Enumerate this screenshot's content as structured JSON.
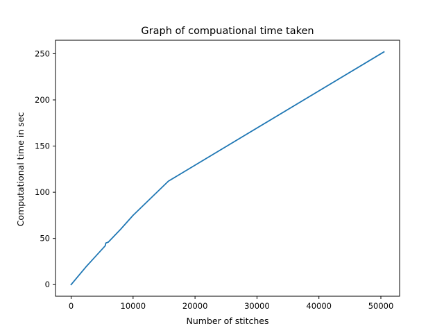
{
  "chart_data": {
    "type": "line",
    "title": "Graph of compuational time taken",
    "xlabel": "Number of stitches",
    "ylabel": "Computational time in sec",
    "xlim": [
      -2525,
      53025
    ],
    "ylim": [
      -12.6,
      264.6
    ],
    "xticks": [
      0,
      10000,
      20000,
      30000,
      40000,
      50000
    ],
    "yticks": [
      0,
      50,
      100,
      150,
      200,
      250
    ],
    "grid": false,
    "series": [
      {
        "color": "#1f77b4",
        "x": [
          0,
          2500,
          5500,
          5600,
          6000,
          8000,
          10000,
          15700,
          50500
        ],
        "y": [
          0,
          20,
          42,
          45,
          46,
          60,
          75,
          112,
          252
        ]
      }
    ]
  }
}
